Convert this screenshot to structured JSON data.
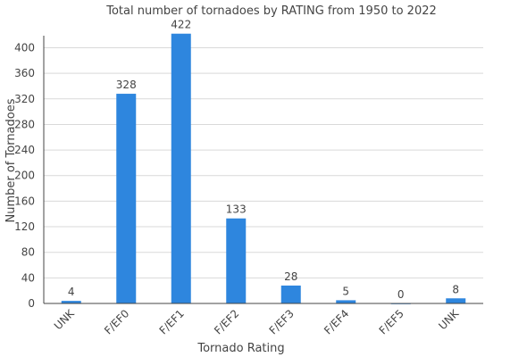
{
  "chart_data": {
    "type": "bar",
    "title": "Total number of tornadoes by RATING from 1950 to 2022",
    "xlabel": "Tornado Rating",
    "ylabel": "Number of Tornadoes",
    "categories": [
      "UNK",
      "F/EF0",
      "F/EF1",
      "F/EF2",
      "F/EF3",
      "F/EF4",
      "F/EF5",
      "UNK"
    ],
    "values": [
      4,
      328,
      422,
      133,
      28,
      5,
      0,
      8
    ],
    "ylim": [
      0,
      430
    ],
    "yticks": [
      0,
      40,
      80,
      120,
      160,
      200,
      240,
      280,
      320,
      360,
      400
    ],
    "grid": true,
    "bar_color": "#2e86de",
    "data_labels": true
  }
}
